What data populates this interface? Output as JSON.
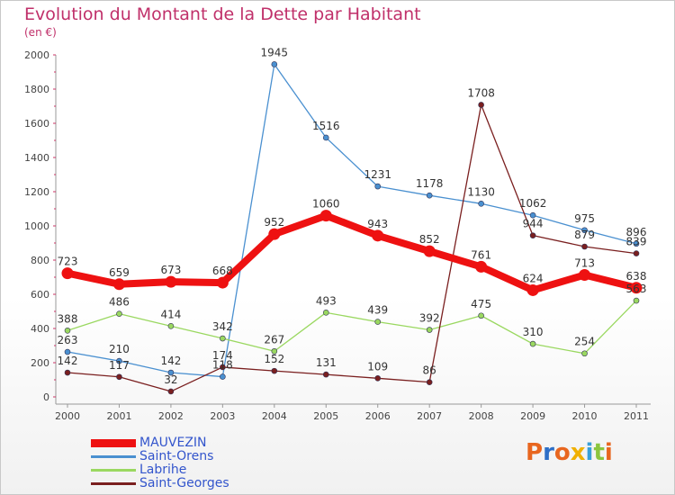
{
  "title": "Evolution du Montant de la Dette par Habitant",
  "unit": "(en €)",
  "logo": {
    "text": "Proxiti",
    "letter_colors": [
      "#e8661f",
      "#2e6fc7",
      "#e8661f",
      "#f0b000",
      "#39a0d8",
      "#8bc53f",
      "#e8661f"
    ]
  },
  "chart_data": {
    "type": "line",
    "categories": [
      "2000",
      "2001",
      "2002",
      "2003",
      "2004",
      "2005",
      "2006",
      "2007",
      "2008",
      "2009",
      "2010",
      "2011"
    ],
    "ylim": [
      0,
      2000
    ],
    "yticks": [
      "0",
      "200",
      "400",
      "600",
      "800",
      "1000",
      "1200",
      "1400",
      "1600",
      "1800",
      "2000"
    ],
    "grid": false,
    "legend_position": "bottom-left",
    "series": [
      {
        "name": "MAUVEZIN",
        "color": "#ee1111",
        "values": [
          723,
          659,
          673,
          668,
          952,
          1060,
          943,
          852,
          761,
          624,
          713,
          638
        ],
        "labels": [
          "723",
          "659",
          "673",
          "668",
          "952",
          "1060",
          "943",
          "852",
          "761",
          "624",
          "713",
          "638"
        ]
      },
      {
        "name": "Saint-Orens",
        "color": "#4a90d0",
        "values": [
          263,
          210,
          142,
          118,
          1945,
          1516,
          1231,
          1178,
          1130,
          1062,
          975,
          896
        ],
        "labels": [
          "263",
          "210",
          "142",
          "118",
          "1945",
          "1516",
          "1231",
          "1178",
          "1130",
          "1062",
          "975",
          "896"
        ]
      },
      {
        "name": "Labrihe",
        "color": "#9ad860",
        "values": [
          388,
          486,
          414,
          342,
          267,
          493,
          439,
          392,
          475,
          310,
          254,
          563
        ],
        "labels": [
          "388",
          "486",
          "414",
          "342",
          "267",
          "493",
          "439",
          "392",
          "475",
          "310",
          "254",
          "563"
        ]
      },
      {
        "name": "Saint-Georges",
        "color": "#7a1f1f",
        "values": [
          142,
          117,
          32,
          174,
          152,
          131,
          109,
          86,
          1708,
          944,
          879,
          839
        ],
        "labels": [
          "142",
          "117",
          "32",
          "174",
          "152",
          "131",
          "109",
          "86",
          "1708",
          "944",
          "879",
          "839"
        ]
      }
    ]
  }
}
